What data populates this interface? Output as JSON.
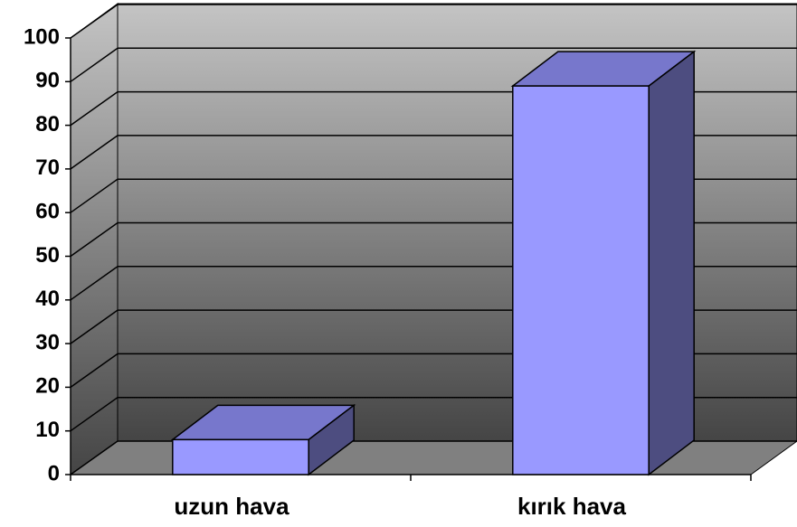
{
  "chart_data": {
    "type": "bar3d",
    "categories": [
      "uzun hava",
      "kırık hava"
    ],
    "values": [
      8,
      89
    ],
    "color": "#9999ff",
    "ylim": [
      0,
      100
    ],
    "yticks": [
      0,
      10,
      20,
      30,
      40,
      50,
      60,
      70,
      80,
      90,
      100
    ],
    "grid": true
  }
}
